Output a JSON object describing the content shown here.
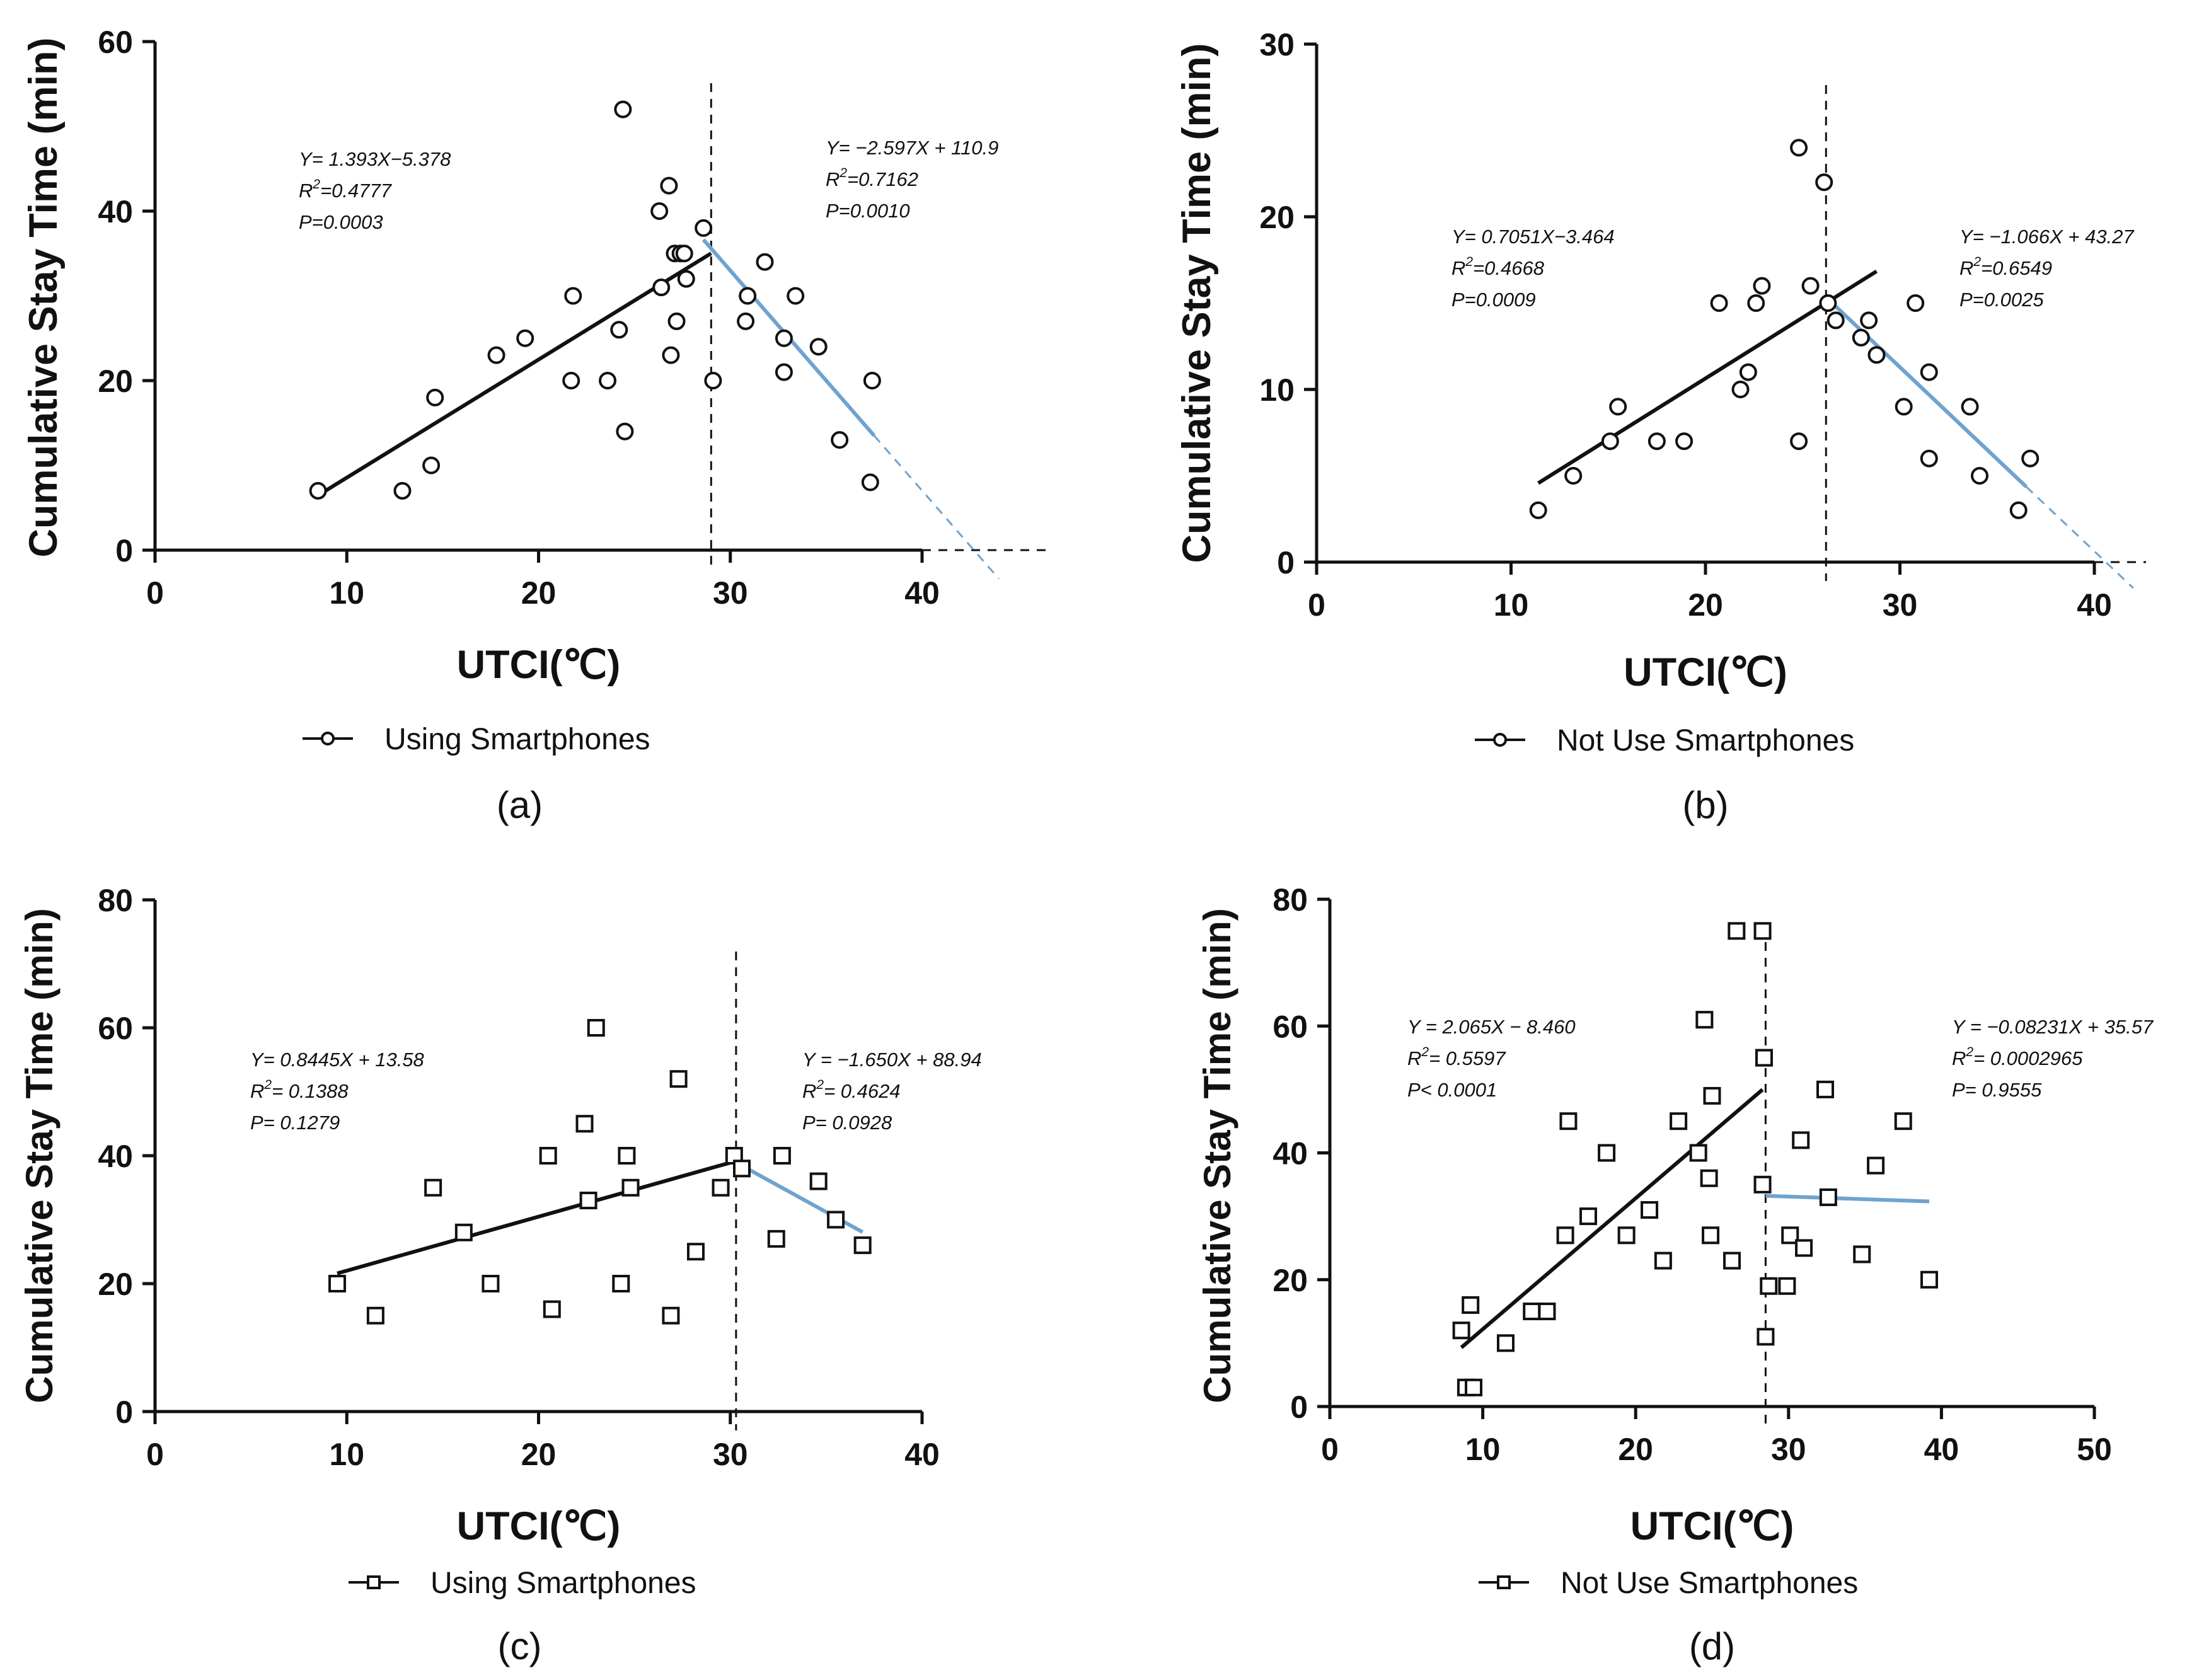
{
  "colors": {
    "axis": "#111111",
    "fit_left": "#111111",
    "fit_right": "#6fa3cf",
    "marker": "#111111"
  },
  "chart_data": [
    {
      "id": "a",
      "type": "scatter",
      "panel_label": "(a)",
      "marker": "circle",
      "xlabel": "UTCI(℃)",
      "ylabel": "Cumulative Stay Time (min)",
      "xlim": [
        0,
        40
      ],
      "ylim": [
        0,
        60
      ],
      "xticks": [
        0,
        10,
        20,
        30,
        40
      ],
      "yticks": [
        0,
        20,
        40,
        60
      ],
      "xtick_labels": [
        "0",
        "10",
        "20",
        "30",
        "40"
      ],
      "ytick_labels": [
        "0",
        "20",
        "40",
        "60"
      ],
      "legend": "Using Smartphones",
      "breakpoint_x": 29,
      "points": [
        [
          8.5,
          7
        ],
        [
          12.9,
          7
        ],
        [
          14.4,
          10
        ],
        [
          14.6,
          18
        ],
        [
          17.8,
          23
        ],
        [
          19.3,
          25
        ],
        [
          21.7,
          20
        ],
        [
          21.8,
          30
        ],
        [
          23.6,
          20
        ],
        [
          24.2,
          26
        ],
        [
          24.4,
          52
        ],
        [
          24.5,
          14
        ],
        [
          26.3,
          40
        ],
        [
          26.4,
          31
        ],
        [
          26.8,
          43
        ],
        [
          26.9,
          23
        ],
        [
          27.1,
          35
        ],
        [
          27.2,
          27
        ],
        [
          27.4,
          35
        ],
        [
          27.6,
          35
        ],
        [
          27.7,
          32
        ],
        [
          28.6,
          38
        ],
        [
          29.1,
          20
        ],
        [
          30.8,
          27
        ],
        [
          30.9,
          30
        ],
        [
          31.8,
          34
        ],
        [
          32.8,
          25
        ],
        [
          32.8,
          21
        ],
        [
          33.4,
          30
        ],
        [
          34.6,
          24
        ],
        [
          35.7,
          13
        ],
        [
          37.3,
          8
        ],
        [
          37.4,
          20
        ]
      ],
      "fit_left": {
        "equation": "Y= 1.393X−5.378",
        "r2_label": "R",
        "r2_value": "=0.4777",
        "p": "P=0.0003",
        "slope": 1.393,
        "intercept": -5.378,
        "x_range": [
          8.5,
          29
        ]
      },
      "fit_right": {
        "equation": "Y= −2.597X + 110.9",
        "r2_label": "R",
        "r2_value": "=0.7162",
        "p": "P=0.0010",
        "slope": -2.597,
        "intercept": 110.9,
        "x_range": [
          28.6,
          37.5
        ],
        "dash_to": 44
      }
    },
    {
      "id": "b",
      "type": "scatter",
      "panel_label": "(b)",
      "marker": "circle",
      "xlabel": "UTCI(℃)",
      "ylabel": "Cumulative Stay Time (min)",
      "xlim": [
        0,
        40
      ],
      "ylim": [
        0,
        30
      ],
      "xticks": [
        0,
        10,
        20,
        30,
        40
      ],
      "yticks": [
        0,
        10,
        20,
        30
      ],
      "xtick_labels": [
        "0",
        "10",
        "20",
        "30",
        "40"
      ],
      "ytick_labels": [
        "0",
        "10",
        "20",
        "30"
      ],
      "legend": "Not Use Smartphones",
      "breakpoint_x": 26.2,
      "points": [
        [
          11.4,
          3
        ],
        [
          13.2,
          5
        ],
        [
          15.1,
          7
        ],
        [
          15.5,
          9
        ],
        [
          17.5,
          7
        ],
        [
          18.9,
          7
        ],
        [
          20.7,
          15
        ],
        [
          21.8,
          10
        ],
        [
          22.2,
          11
        ],
        [
          22.6,
          15
        ],
        [
          22.9,
          16
        ],
        [
          24.8,
          24
        ],
        [
          24.8,
          7
        ],
        [
          25.4,
          16
        ],
        [
          26.1,
          22
        ],
        [
          26.3,
          15
        ],
        [
          26.7,
          14
        ],
        [
          28.0,
          13
        ],
        [
          28.4,
          14
        ],
        [
          28.8,
          12
        ],
        [
          30.2,
          9
        ],
        [
          30.8,
          15
        ],
        [
          31.5,
          11
        ],
        [
          31.5,
          6
        ],
        [
          33.6,
          9
        ],
        [
          34.1,
          5
        ],
        [
          36.1,
          3
        ],
        [
          36.7,
          6
        ]
      ],
      "fit_left": {
        "equation": "Y= 0.7051X−3.464",
        "r2_label": "R",
        "r2_value": "=0.4668",
        "p": "P=0.0009",
        "slope": 0.7051,
        "intercept": -3.464,
        "x_range": [
          11.4,
          28.8
        ]
      },
      "fit_right": {
        "equation": "Y= −1.066X + 43.27",
        "r2_label": "R",
        "r2_value": "=0.6549",
        "p": "P=0.0025",
        "slope": -1.066,
        "intercept": 43.27,
        "x_range": [
          26.5,
          36.5
        ],
        "dash_to": 42
      }
    },
    {
      "id": "c",
      "type": "scatter",
      "panel_label": "(c)",
      "marker": "square",
      "xlabel": "UTCI(℃)",
      "ylabel": "Cumulative Stay Time (min)",
      "xlim": [
        0,
        40
      ],
      "ylim": [
        0,
        80
      ],
      "xticks": [
        0,
        10,
        20,
        30,
        40
      ],
      "yticks": [
        0,
        20,
        40,
        60,
        80
      ],
      "xtick_labels": [
        "0",
        "10",
        "20",
        "30",
        "40"
      ],
      "ytick_labels": [
        "0",
        "20",
        "40",
        "60",
        "80"
      ],
      "legend": "Using Smartphones",
      "breakpoint_x": 30.3,
      "points": [
        [
          9.5,
          20
        ],
        [
          11.5,
          15
        ],
        [
          14.5,
          35
        ],
        [
          16.1,
          28
        ],
        [
          17.5,
          20
        ],
        [
          20.5,
          40
        ],
        [
          20.7,
          16
        ],
        [
          22.4,
          45
        ],
        [
          22.6,
          33
        ],
        [
          23.0,
          60
        ],
        [
          24.3,
          20
        ],
        [
          24.6,
          40
        ],
        [
          24.8,
          35
        ],
        [
          26.9,
          15
        ],
        [
          27.3,
          52
        ],
        [
          28.2,
          25
        ],
        [
          29.5,
          35
        ],
        [
          30.2,
          40
        ],
        [
          30.6,
          38
        ],
        [
          32.4,
          27
        ],
        [
          32.7,
          40
        ],
        [
          34.6,
          36
        ],
        [
          35.5,
          30
        ],
        [
          36.9,
          26
        ]
      ],
      "fit_left": {
        "equation": "Y=  0.8445X + 13.58",
        "r2_label": "R",
        "r2_value": "= 0.1388",
        "p": "P= 0.1279",
        "slope": 0.8445,
        "intercept": 13.58,
        "x_range": [
          9.5,
          30.3
        ]
      },
      "fit_right": {
        "equation": "Y = −1.650X + 88.94",
        "r2_label": "R",
        "r2_value": "= 0.4624",
        "p": "P= 0.0928",
        "slope": -1.65,
        "intercept": 88.94,
        "x_range": [
          30.3,
          36.9
        ],
        "dash_to": null
      }
    },
    {
      "id": "d",
      "type": "scatter",
      "panel_label": "(d)",
      "marker": "square",
      "xlabel": "UTCI(℃)",
      "ylabel": "Cumulative Stay Time (min)",
      "xlim": [
        0,
        50
      ],
      "ylim": [
        0,
        80
      ],
      "xticks": [
        0,
        10,
        20,
        30,
        40,
        50
      ],
      "yticks": [
        0,
        20,
        40,
        60,
        80
      ],
      "xtick_labels": [
        "0",
        "10",
        "20",
        "30",
        "40",
        "50"
      ],
      "ytick_labels": [
        "0",
        "20",
        "40",
        "60",
        "80"
      ],
      "legend": "Not Use Smartphones",
      "breakpoint_x": 28.5,
      "points": [
        [
          8.6,
          12
        ],
        [
          8.9,
          3
        ],
        [
          9.2,
          16
        ],
        [
          9.4,
          3
        ],
        [
          11.5,
          10
        ],
        [
          13.2,
          15
        ],
        [
          14.2,
          15
        ],
        [
          15.4,
          27
        ],
        [
          15.6,
          45
        ],
        [
          16.9,
          30
        ],
        [
          18.1,
          40
        ],
        [
          19.4,
          27
        ],
        [
          20.9,
          31
        ],
        [
          21.8,
          23
        ],
        [
          22.8,
          45
        ],
        [
          24.1,
          40
        ],
        [
          24.5,
          61
        ],
        [
          24.8,
          36
        ],
        [
          24.9,
          27
        ],
        [
          25.0,
          49
        ],
        [
          26.3,
          23
        ],
        [
          26.6,
          75
        ],
        [
          28.3,
          75
        ],
        [
          28.3,
          35
        ],
        [
          28.4,
          55
        ],
        [
          28.5,
          11
        ],
        [
          28.7,
          19
        ],
        [
          29.9,
          19
        ],
        [
          30.1,
          27
        ],
        [
          30.8,
          42
        ],
        [
          31.0,
          25
        ],
        [
          32.4,
          50
        ],
        [
          32.6,
          33
        ],
        [
          34.8,
          24
        ],
        [
          35.7,
          38
        ],
        [
          37.5,
          45
        ],
        [
          39.2,
          20
        ]
      ],
      "fit_left": {
        "equation": "Y = 2.065X − 8.460",
        "r2_label": "R",
        "r2_value": "= 0.5597",
        "p": "P< 0.0001",
        "slope": 2.065,
        "intercept": -8.46,
        "x_range": [
          8.6,
          28.3
        ]
      },
      "fit_right": {
        "equation": "Y = −0.08231X + 35.57",
        "r2_label": "R",
        "r2_value": "= 0.0002965",
        "p": "P= 0.9555",
        "slope": -0.08231,
        "intercept": 35.57,
        "x_range": [
          28.5,
          39.2
        ],
        "dash_to": null
      }
    }
  ]
}
